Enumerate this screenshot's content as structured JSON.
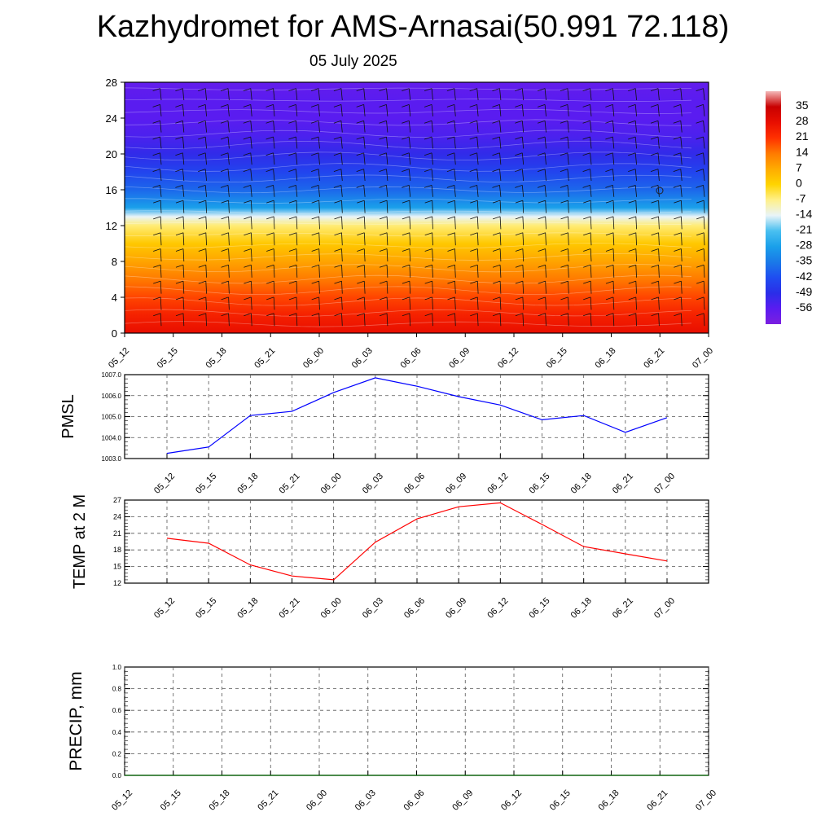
{
  "title": "Kazhydromet for AMS-Arnasai(50.991 72.118)",
  "subtitle": "05 July 2025",
  "chart_data": [
    {
      "type": "heatmap",
      "title": "",
      "xlabel": "",
      "ylabel": "",
      "x_ticks": [
        "05_12",
        "05_15",
        "05_18",
        "05_21",
        "06_00",
        "06_03",
        "06_06",
        "06_09",
        "06_12",
        "06_15",
        "06_18",
        "06_21",
        "07_00"
      ],
      "y_ticks": [
        0,
        4,
        8,
        12,
        16,
        20,
        24,
        28
      ],
      "ylim": [
        0,
        28
      ],
      "rows": [
        0,
        2,
        4,
        6,
        8,
        10,
        12,
        13,
        14,
        16,
        18,
        20,
        22,
        24,
        26,
        28
      ],
      "values_by_row": [
        28,
        24,
        19,
        14,
        8,
        2,
        -6,
        -14,
        -28,
        -38,
        -44,
        -50,
        -54,
        -56,
        -56,
        -58
      ],
      "colorbar": {
        "labels": [
          "35",
          "28",
          "21",
          "14",
          "7",
          "0",
          "-7",
          "-14",
          "-21",
          "-28",
          "-35",
          "-42",
          "-49",
          "-56"
        ],
        "range": [
          -63,
          42
        ]
      },
      "overlay": "wind barbs",
      "grid": false
    },
    {
      "type": "line",
      "ylabel": "PMSL",
      "x_ticks": [
        "05_12",
        "05_15",
        "05_18",
        "05_21",
        "06_00",
        "06_03",
        "06_06",
        "06_09",
        "06_12",
        "06_15",
        "06_18",
        "06_21",
        "07_00"
      ],
      "y_ticks": [
        "1003.0",
        "1004.0",
        "1005.0",
        "1006.0",
        "1007.0"
      ],
      "ylim": [
        1003.0,
        1007.0
      ],
      "series": [
        {
          "color": "#0000ff",
          "values": [
            1003.25,
            1003.55,
            1005.05,
            1005.25,
            1006.15,
            1006.85,
            1006.45,
            1005.95,
            1005.55,
            1004.85,
            1005.05,
            1004.25,
            1004.95
          ]
        }
      ],
      "grid": true
    },
    {
      "type": "line",
      "ylabel": "TEMP at 2 M",
      "x_ticks": [
        "05_12",
        "05_15",
        "05_18",
        "05_21",
        "06_00",
        "06_03",
        "06_06",
        "06_09",
        "06_12",
        "06_15",
        "06_18",
        "06_21",
        "07_00"
      ],
      "y_ticks": [
        "12",
        "15",
        "18",
        "21",
        "24",
        "27"
      ],
      "ylim": [
        12,
        27
      ],
      "series": [
        {
          "color": "#ff0000",
          "values": [
            20.1,
            19.2,
            15.3,
            13.3,
            12.6,
            19.4,
            23.6,
            25.8,
            26.5,
            22.6,
            18.6,
            17.3,
            16.0
          ]
        }
      ],
      "grid": true
    },
    {
      "type": "line",
      "ylabel": "PRECIP, mm",
      "x_ticks": [
        "05_12",
        "05_15",
        "05_18",
        "05_21",
        "06_00",
        "06_03",
        "06_06",
        "06_09",
        "06_12",
        "06_15",
        "06_18",
        "06_21",
        "07_00"
      ],
      "y_ticks": [
        "0.0",
        "0.2",
        "0.4",
        "0.6",
        "0.8",
        "1.0"
      ],
      "ylim": [
        0,
        1.0
      ],
      "series": [
        {
          "color": "#006400",
          "values": [
            0,
            0,
            0,
            0,
            0,
            0,
            0,
            0,
            0,
            0,
            0,
            0,
            0
          ]
        }
      ],
      "grid": true
    }
  ]
}
